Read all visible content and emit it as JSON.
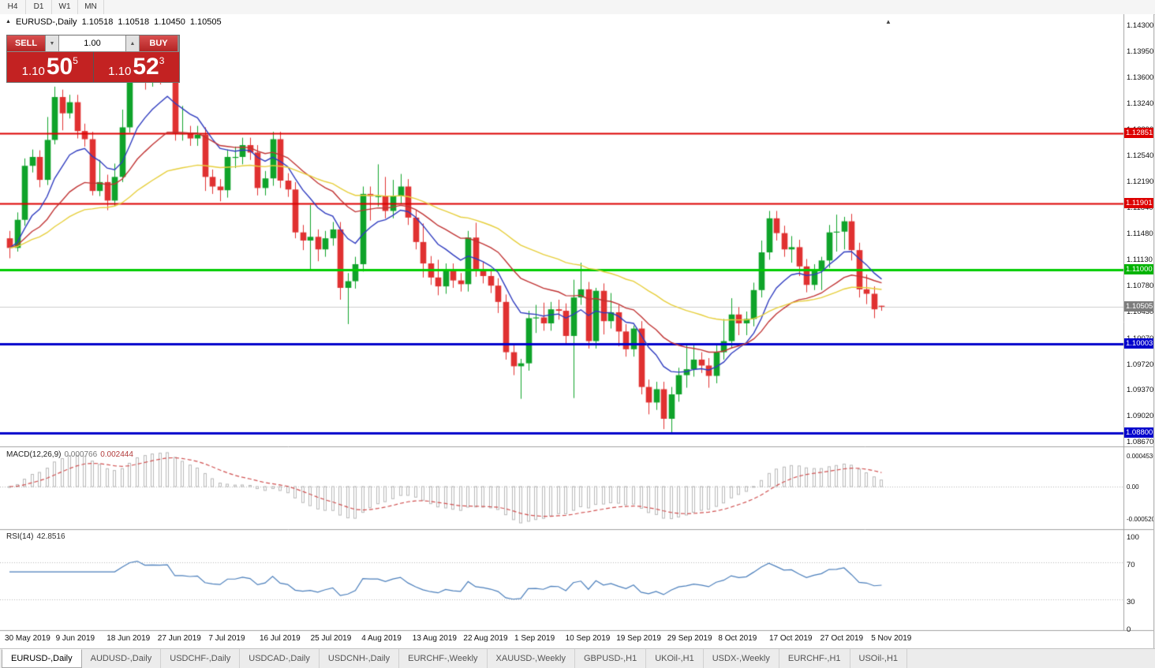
{
  "toolbar": {
    "timeframes": [
      "H4",
      "D1",
      "W1",
      "MN"
    ]
  },
  "chart_header": {
    "symbol": "EURUSD-,Daily",
    "open": "1.10518",
    "high": "1.10518",
    "low": "1.10450",
    "close": "1.10505"
  },
  "trade_panel": {
    "sell_label": "SELL",
    "buy_label": "BUY",
    "volume": "1.00",
    "sell_price": {
      "prefix": "1.10",
      "big": "50",
      "sup": "5"
    },
    "buy_price": {
      "prefix": "1.10",
      "big": "52",
      "sup": "3"
    }
  },
  "price_axis": {
    "labels": [
      "1.14300",
      "1.13950",
      "1.13600",
      "1.13240",
      "1.12890",
      "1.12540",
      "1.12190",
      "1.11840",
      "1.11480",
      "1.11130",
      "1.10780",
      "1.10430",
      "1.10070",
      "1.09720",
      "1.09370",
      "1.09020",
      "1.08670"
    ],
    "tags": [
      {
        "text": "1.12851",
        "color": "#dd0000"
      },
      {
        "text": "1.11901",
        "color": "#dd0000"
      },
      {
        "text": "1.11000",
        "color": "#00b300"
      },
      {
        "text": "1.10505",
        "color": "#7d7d7d"
      },
      {
        "text": "1.10003",
        "color": "#0000cc"
      },
      {
        "text": "1.08800",
        "color": "#0000cc"
      }
    ]
  },
  "macd_panel": {
    "label": "MACD(12,26,9)",
    "values": [
      "0.000766",
      "0.002444"
    ],
    "axis": [
      "0.0004536",
      "0.00",
      "-0.0005205"
    ]
  },
  "rsi_panel": {
    "label": "RSI(14)",
    "value": "42.8516",
    "axis": [
      "100",
      "70",
      "30",
      "0"
    ]
  },
  "date_axis": [
    "30 May 2019",
    "9 Jun 2019",
    "18 Jun 2019",
    "27 Jun 2019",
    "7 Jul 2019",
    "16 Jul 2019",
    "25 Jul 2019",
    "4 Aug 2019",
    "13 Aug 2019",
    "22 Aug 2019",
    "1 Sep 2019",
    "10 Sep 2019",
    "19 Sep 2019",
    "29 Sep 2019",
    "8 Oct 2019",
    "17 Oct 2019",
    "27 Oct 2019",
    "5 Nov 2019"
  ],
  "tabs": [
    {
      "label": "EURUSD-,Daily",
      "active": true
    },
    {
      "label": "AUDUSD-,Daily",
      "active": false
    },
    {
      "label": "USDCHF-,Daily",
      "active": false
    },
    {
      "label": "USDCAD-,Daily",
      "active": false
    },
    {
      "label": "USDCNH-,Daily",
      "active": false
    },
    {
      "label": "EURCHF-,Weekly",
      "active": false
    },
    {
      "label": "XAUUSD-,Weekly",
      "active": false
    },
    {
      "label": "GBPUSD-,H1",
      "active": false
    },
    {
      "label": "UKOil-,H1",
      "active": false
    },
    {
      "label": "USDX-,Weekly",
      "active": false
    },
    {
      "label": "EURCHF-,H1",
      "active": false
    },
    {
      "label": "USOil-,H1",
      "active": false
    }
  ],
  "chart_data": {
    "type": "candlestick",
    "symbol": "EURUSD-",
    "timeframe": "Daily",
    "y_range": [
      1.0867,
      1.143
    ],
    "current_price": 1.10505,
    "colors": {
      "up": "#0fa32a",
      "down": "#e03131",
      "rsi": "#4a7ebb",
      "macd_hist": "#b8b8b8",
      "macd_signal": "#d05050"
    },
    "levels": [
      {
        "price": 1.12851,
        "color": "#dd0000",
        "width": 2
      },
      {
        "price": 1.11901,
        "color": "#dd0000",
        "width": 2
      },
      {
        "price": 1.11,
        "color": "#00cc00",
        "width": 3
      },
      {
        "price": 1.10003,
        "color": "#0000cc",
        "width": 3
      },
      {
        "price": 1.088,
        "color": "#0000cc",
        "width": 3
      }
    ],
    "moving_averages": [
      {
        "period": 10,
        "color": "#2e3bbf"
      },
      {
        "period": 22,
        "color": "#c03333"
      },
      {
        "period": 45,
        "color": "#e6ce3a"
      }
    ],
    "indicators": {
      "macd": {
        "fast": 12,
        "slow": 26,
        "signal": 9
      },
      "rsi": {
        "period": 14
      }
    },
    "candles": [
      [
        1.1143,
        1.1153,
        1.1116,
        1.113
      ],
      [
        1.113,
        1.1178,
        1.1125,
        1.1168
      ],
      [
        1.1168,
        1.1251,
        1.116,
        1.1241
      ],
      [
        1.1241,
        1.1263,
        1.1232,
        1.1253
      ],
      [
        1.1253,
        1.1262,
        1.1212,
        1.1222
      ],
      [
        1.1222,
        1.1307,
        1.1215,
        1.1276
      ],
      [
        1.1276,
        1.1348,
        1.127,
        1.1334
      ],
      [
        1.1334,
        1.1344,
        1.1289,
        1.1312
      ],
      [
        1.1312,
        1.1337,
        1.1305,
        1.1327
      ],
      [
        1.1327,
        1.1337,
        1.1278,
        1.1288
      ],
      [
        1.1288,
        1.1298,
        1.1267,
        1.1277
      ],
      [
        1.1277,
        1.1287,
        1.1201,
        1.1207
      ],
      [
        1.1207,
        1.1249,
        1.12,
        1.1219
      ],
      [
        1.1219,
        1.1229,
        1.1181,
        1.1194
      ],
      [
        1.1194,
        1.1244,
        1.1187,
        1.1226
      ],
      [
        1.1226,
        1.1317,
        1.1219,
        1.1293
      ],
      [
        1.1293,
        1.1379,
        1.1286,
        1.1369
      ],
      [
        1.1369,
        1.1412,
        1.1362,
        1.1399
      ],
      [
        1.1399,
        1.1409,
        1.1344,
        1.1366
      ],
      [
        1.1366,
        1.1391,
        1.1348,
        1.1369
      ],
      [
        1.1369,
        1.1381,
        1.1351,
        1.1368
      ],
      [
        1.1368,
        1.139,
        1.1358,
        1.1373
      ],
      [
        1.1373,
        1.1383,
        1.1275,
        1.1285
      ],
      [
        1.1285,
        1.1322,
        1.1275,
        1.1285
      ],
      [
        1.1285,
        1.1295,
        1.1268,
        1.1278
      ],
      [
        1.1278,
        1.1295,
        1.1268,
        1.1283
      ],
      [
        1.1283,
        1.1293,
        1.1207,
        1.1226
      ],
      [
        1.1226,
        1.1236,
        1.1203,
        1.1213
      ],
      [
        1.1213,
        1.1223,
        1.1193,
        1.1208
      ],
      [
        1.1208,
        1.1263,
        1.1198,
        1.1253
      ],
      [
        1.1253,
        1.1267,
        1.1238,
        1.1253
      ],
      [
        1.1253,
        1.1279,
        1.1243,
        1.1269
      ],
      [
        1.1269,
        1.1279,
        1.1249,
        1.1259
      ],
      [
        1.1259,
        1.1269,
        1.1201,
        1.1211
      ],
      [
        1.1211,
        1.1234,
        1.1201,
        1.1224
      ],
      [
        1.1224,
        1.1287,
        1.1214,
        1.1277
      ],
      [
        1.1277,
        1.1287,
        1.1211,
        1.1221
      ],
      [
        1.1221,
        1.1231,
        1.1199,
        1.1209
      ],
      [
        1.1209,
        1.1219,
        1.1143,
        1.1151
      ],
      [
        1.1151,
        1.1161,
        1.1127,
        1.114
      ],
      [
        1.114,
        1.1188,
        1.1101,
        1.1145
      ],
      [
        1.1145,
        1.1155,
        1.1112,
        1.1128
      ],
      [
        1.1128,
        1.1153,
        1.1118,
        1.1143
      ],
      [
        1.1143,
        1.1165,
        1.1133,
        1.1155
      ],
      [
        1.1155,
        1.1165,
        1.106,
        1.1076
      ],
      [
        1.1076,
        1.1096,
        1.1027,
        1.1085
      ],
      [
        1.1085,
        1.1118,
        1.1075,
        1.1108
      ],
      [
        1.1108,
        1.1213,
        1.1098,
        1.1203
      ],
      [
        1.1203,
        1.1213,
        1.1167,
        1.12
      ],
      [
        1.12,
        1.1243,
        1.1186,
        1.12
      ],
      [
        1.12,
        1.1226,
        1.117,
        1.118
      ],
      [
        1.118,
        1.1222,
        1.117,
        1.12
      ],
      [
        1.12,
        1.123,
        1.119,
        1.1213
      ],
      [
        1.1213,
        1.1223,
        1.1161,
        1.1171
      ],
      [
        1.1171,
        1.1181,
        1.1128,
        1.1138
      ],
      [
        1.1138,
        1.1163,
        1.109,
        1.1109
      ],
      [
        1.1109,
        1.1119,
        1.108,
        1.109
      ],
      [
        1.109,
        1.1114,
        1.1066,
        1.1078
      ],
      [
        1.1078,
        1.1109,
        1.1068,
        1.1099
      ],
      [
        1.1099,
        1.1109,
        1.1076,
        1.1086
      ],
      [
        1.1086,
        1.1096,
        1.1071,
        1.1081
      ],
      [
        1.1081,
        1.1153,
        1.1071,
        1.1144
      ],
      [
        1.1144,
        1.1164,
        1.1091,
        1.1101
      ],
      [
        1.1101,
        1.1111,
        1.1082,
        1.1092
      ],
      [
        1.1092,
        1.1102,
        1.1069,
        1.1079
      ],
      [
        1.1079,
        1.1089,
        1.1042,
        1.1057
      ],
      [
        1.1057,
        1.1067,
        1.0979,
        1.0989
      ],
      [
        1.0989,
        1.0999,
        1.0958,
        1.097
      ],
      [
        1.097,
        1.098,
        1.0926,
        1.0974
      ],
      [
        1.0974,
        1.1045,
        1.0964,
        1.1035
      ],
      [
        1.1035,
        1.1053,
        1.1015,
        1.1036
      ],
      [
        1.1036,
        1.1056,
        1.1018,
        1.1028
      ],
      [
        1.1028,
        1.1057,
        1.1018,
        1.1047
      ],
      [
        1.1047,
        1.106,
        1.1033,
        1.1045
      ],
      [
        1.1045,
        1.1055,
        1.1001,
        1.1011
      ],
      [
        1.1011,
        1.1087,
        1.0927,
        1.1063
      ],
      [
        1.1063,
        1.111,
        1.1053,
        1.1074
      ],
      [
        1.1074,
        1.1084,
        1.0994,
        1.1004
      ],
      [
        1.1004,
        1.1076,
        1.0994,
        1.1072
      ],
      [
        1.1072,
        1.1082,
        1.1013,
        1.1031
      ],
      [
        1.1031,
        1.1069,
        1.1021,
        1.1043
      ],
      [
        1.1043,
        1.1053,
        1.0997,
        1.1017
      ],
      [
        1.1017,
        1.1027,
        1.0983,
        1.0993
      ],
      [
        1.0993,
        1.1025,
        1.0983,
        1.1021
      ],
      [
        1.1021,
        1.1031,
        1.0932,
        1.0942
      ],
      [
        1.0942,
        1.0952,
        1.0905,
        1.0921
      ],
      [
        1.0921,
        1.0949,
        1.0911,
        1.0939
      ],
      [
        1.0939,
        1.0949,
        1.0885,
        1.0899
      ],
      [
        1.0899,
        1.0942,
        1.0879,
        1.0932
      ],
      [
        1.0932,
        1.0968,
        1.0922,
        1.0958
      ],
      [
        1.0958,
        1.0999,
        1.0941,
        1.0966
      ],
      [
        1.0966,
        1.0999,
        1.0956,
        1.0979
      ],
      [
        1.0979,
        1.0989,
        1.0961,
        1.0971
      ],
      [
        1.0971,
        1.0981,
        1.0941,
        1.0957
      ],
      [
        1.0957,
        1.0999,
        1.0947,
        1.0989
      ],
      [
        1.0989,
        1.1034,
        1.0979,
        1.1004
      ],
      [
        1.1004,
        1.1062,
        1.0994,
        1.104
      ],
      [
        1.104,
        1.105,
        1.1012,
        1.1028
      ],
      [
        1.1028,
        1.1044,
        1.1012,
        1.1034
      ],
      [
        1.1034,
        1.1083,
        1.1024,
        1.1073
      ],
      [
        1.1073,
        1.114,
        1.1063,
        1.1124
      ],
      [
        1.1124,
        1.118,
        1.1114,
        1.117
      ],
      [
        1.117,
        1.118,
        1.114,
        1.115
      ],
      [
        1.115,
        1.116,
        1.1118,
        1.1128
      ],
      [
        1.1128,
        1.1146,
        1.111,
        1.1131
      ],
      [
        1.1131,
        1.1141,
        1.1092,
        1.1105
      ],
      [
        1.1105,
        1.1115,
        1.107,
        1.108
      ],
      [
        1.108,
        1.1108,
        1.1073,
        1.1099
      ],
      [
        1.1099,
        1.1118,
        1.1073,
        1.1113
      ],
      [
        1.1113,
        1.1161,
        1.1103,
        1.1151
      ],
      [
        1.1151,
        1.1175,
        1.1125,
        1.1152
      ],
      [
        1.1152,
        1.1172,
        1.1128,
        1.1166
      ],
      [
        1.1166,
        1.1176,
        1.1113,
        1.1127
      ],
      [
        1.1127,
        1.1137,
        1.1063,
        1.1074
      ],
      [
        1.1074,
        1.1094,
        1.1054,
        1.1068
      ],
      [
        1.1068,
        1.1078,
        1.1035,
        1.1047
      ],
      [
        1.10518,
        1.10518,
        1.1045,
        1.10505
      ]
    ]
  }
}
